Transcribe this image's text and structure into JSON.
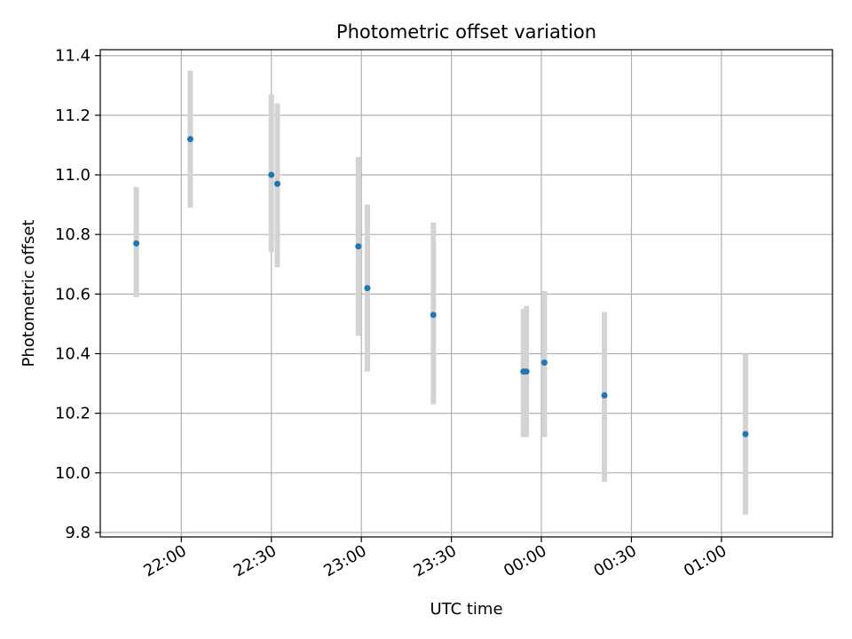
{
  "chart_data": {
    "type": "scatter",
    "title": "Photometric offset variation",
    "xlabel": "UTC time",
    "ylabel": "Photometric offset",
    "xlim": [
      "21:33",
      "01:37"
    ],
    "ylim": [
      9.785,
      11.42
    ],
    "x_ticks": [
      "22:00",
      "22:30",
      "23:00",
      "23:30",
      "00:00",
      "00:30",
      "01:00"
    ],
    "y_ticks": [
      9.8,
      10.0,
      10.2,
      10.4,
      10.6,
      10.8,
      11.0,
      11.2,
      11.4
    ],
    "y_tick_labels": [
      "9.8",
      "10.0",
      "10.2",
      "10.4",
      "10.6",
      "10.8",
      "11.0",
      "11.2",
      "11.4"
    ],
    "grid": true,
    "series": [
      {
        "points": [
          {
            "x": "21:45",
            "y": 10.77,
            "err_low": 10.59,
            "err_high": 10.96
          },
          {
            "x": "22:03",
            "y": 11.12,
            "err_low": 10.89,
            "err_high": 11.35
          },
          {
            "x": "22:30",
            "y": 11.0,
            "err_low": 10.74,
            "err_high": 11.27
          },
          {
            "x": "22:32",
            "y": 10.97,
            "err_low": 10.69,
            "err_high": 11.24
          },
          {
            "x": "22:59",
            "y": 10.76,
            "err_low": 10.46,
            "err_high": 11.06
          },
          {
            "x": "23:02",
            "y": 10.62,
            "err_low": 10.34,
            "err_high": 10.9
          },
          {
            "x": "23:24",
            "y": 10.53,
            "err_low": 10.23,
            "err_high": 10.84
          },
          {
            "x": "23:54",
            "y": 10.34,
            "err_low": 10.12,
            "err_high": 10.55
          },
          {
            "x": "23:55",
            "y": 10.34,
            "err_low": 10.12,
            "err_high": 10.56
          },
          {
            "x": "00:01",
            "y": 10.37,
            "err_low": 10.12,
            "err_high": 10.61
          },
          {
            "x": "00:21",
            "y": 10.26,
            "err_low": 9.97,
            "err_high": 10.54
          },
          {
            "x": "01:08",
            "y": 10.13,
            "err_low": 9.86,
            "err_high": 10.4
          }
        ]
      }
    ],
    "marker_color": "#1f77b4",
    "errorbar_color": "#d3d3d3",
    "grid_color": "#b0b0b0"
  }
}
